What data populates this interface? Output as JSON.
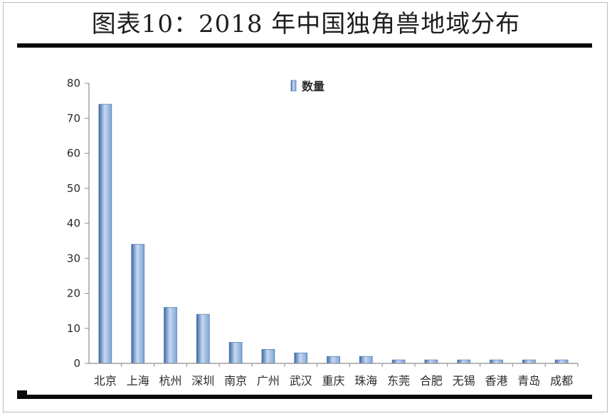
{
  "header": {
    "title": "图表10：2018 年中国独角兽地域分布"
  },
  "colors": {
    "bar_light": "#c6d9f0",
    "bar_mid": "#7ea5d6",
    "bar_dark": "#3d6aa8",
    "axis": "#8c8c8c",
    "rule": "#0a0a0a"
  },
  "chart_data": {
    "type": "bar",
    "categories": [
      "北京",
      "上海",
      "杭州",
      "深圳",
      "南京",
      "广州",
      "武汉",
      "重庆",
      "珠海",
      "东莞",
      "合肥",
      "无锡",
      "香港",
      "青岛",
      "成都"
    ],
    "series": [
      {
        "name": "数量",
        "values": [
          74,
          34,
          16,
          14,
          6,
          4,
          3,
          2,
          2,
          1,
          1,
          1,
          1,
          1,
          1
        ]
      }
    ],
    "ylim": [
      0,
      80
    ],
    "yticks": [
      0,
      10,
      20,
      30,
      40,
      50,
      60,
      70,
      80
    ],
    "legend_position": "top-center",
    "grid": false
  }
}
